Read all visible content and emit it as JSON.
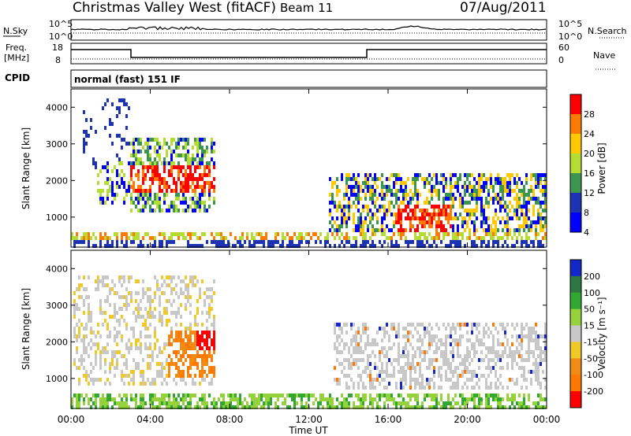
{
  "header": {
    "site": "Christmas Valley West (fitACF)",
    "beam": "Beam 11",
    "date": "07/Aug/2011"
  },
  "top_panels": {
    "nsky_label": "N.Sky",
    "nsky_ticks": [
      "10^5",
      "10^0"
    ],
    "nsearch_label": "N.Search",
    "nsearch_ticks": [
      "10^5",
      "10^0"
    ],
    "freq_label": "Freq.",
    "freq_unit": "[MHz]",
    "freq_ticks": [
      "18",
      "8"
    ],
    "nave_label": "Nave",
    "nave_ticks": [
      "60",
      "0"
    ],
    "cpid_label": "CPID",
    "cpid_text": "normal (fast) 151 IF"
  },
  "chart_data": [
    {
      "type": "heatmap",
      "name": "power",
      "ylabel": "Slant Range [km]",
      "yticks": [
        "4000",
        "3000",
        "2000",
        "1000"
      ],
      "ylim": [
        180,
        4500
      ],
      "colorbar_label": "Power [dB]",
      "colorbar_ticks": [
        "28",
        "24",
        "20",
        "16",
        "12",
        "8",
        "4"
      ],
      "colorbar_colors": [
        "#ff0000",
        "#ff7a00",
        "#ffc800",
        "#b4dc32",
        "#3c9650",
        "#1e32b4",
        "#0000ff"
      ]
    },
    {
      "type": "heatmap",
      "name": "velocity",
      "ylabel": "Slant Range [km]",
      "yticks": [
        "4000",
        "3000",
        "2000",
        "1000"
      ],
      "ylim": [
        180,
        4500
      ],
      "colorbar_label": "Velocity [m s⁻¹]",
      "colorbar_ticks": [
        "200",
        "100",
        "50",
        "15",
        "-15",
        "-50",
        "-100",
        "-200"
      ],
      "colorbar_colors": [
        "#1428c8",
        "#2d7840",
        "#32a832",
        "#96d23c",
        "#c8c8c8",
        "#f0c828",
        "#f08c14",
        "#ff7800",
        "#ff0000"
      ]
    }
  ],
  "xaxis": {
    "label": "Time UT",
    "ticks": [
      "00:00",
      "04:00",
      "08:00",
      "12:00",
      "16:00",
      "20:00",
      "00:00"
    ]
  },
  "colors": {
    "ground_scatter": "#c8c8c8"
  }
}
